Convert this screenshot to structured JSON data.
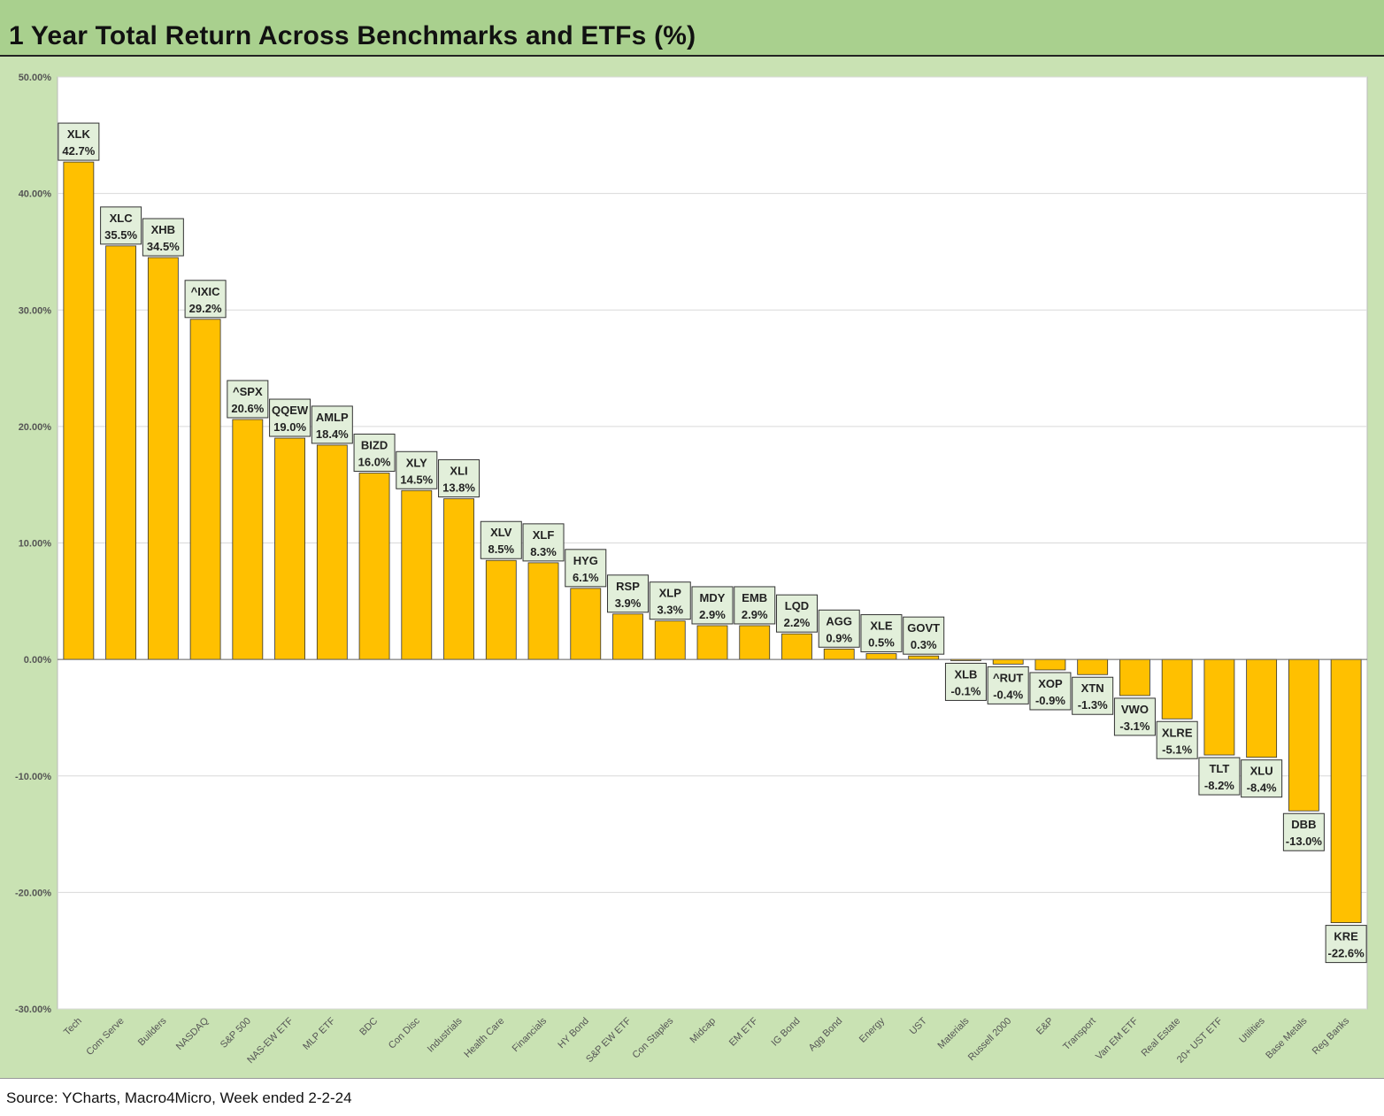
{
  "title": "1 Year Total Return Across Benchmarks and ETFs (%)",
  "source": "Source: YCharts, Macro4Micro, Week ended 2-2-24",
  "colors": {
    "bar": "#ffc000",
    "title_bar": "#a9d08e",
    "background": "#c9e2b3",
    "label_box": "#e2efda"
  },
  "chart_data": {
    "type": "bar",
    "title": "1 Year Total Return Across Benchmarks and ETFs (%)",
    "xlabel": "",
    "ylabel": "",
    "ylim": [
      -30,
      50
    ],
    "yticks": [
      "50.00%",
      "40.00%",
      "30.00%",
      "20.00%",
      "10.00%",
      "0.00%",
      "-10.00%",
      "-20.00%",
      "-30.00%"
    ],
    "ytick_values": [
      50,
      40,
      30,
      20,
      10,
      0,
      -10,
      -20,
      -30
    ],
    "grid": true,
    "legend": "none",
    "categories": [
      "Tech",
      "Com Serve",
      "Builders",
      "NASDAQ",
      "S&P 500",
      "NAS-EW ETF",
      "MLP ETF",
      "BDC",
      "Con Disc",
      "Industrials",
      "Health Care",
      "Financials",
      "HY Bond",
      "S&P EW ETF",
      "Con Staples",
      "Midcap",
      "EM ETF",
      "IG Bond",
      "Agg Bond",
      "Energy",
      "UST",
      "Materials",
      "Russell 2000",
      "E&P",
      "Transport",
      "Van EM ETF",
      "Real Estate",
      "20+ UST ETF",
      "Utilities",
      "Base Metals",
      "Reg Banks"
    ],
    "tickers": [
      "XLK",
      "XLC",
      "XHB",
      "^IXIC",
      "^SPX",
      "QQEW",
      "AMLP",
      "BIZD",
      "XLY",
      "XLI",
      "XLV",
      "XLF",
      "HYG",
      "RSP",
      "XLP",
      "MDY",
      "EMB",
      "LQD",
      "AGG",
      "XLE",
      "GOVT",
      "XLB",
      "^RUT",
      "XOP",
      "XTN",
      "VWO",
      "XLRE",
      "TLT",
      "XLU",
      "DBB",
      "KRE"
    ],
    "values": [
      42.7,
      35.5,
      34.5,
      29.2,
      20.6,
      19.0,
      18.4,
      16.0,
      14.5,
      13.8,
      8.5,
      8.3,
      6.1,
      3.9,
      3.3,
      2.9,
      2.9,
      2.2,
      0.9,
      0.5,
      0.3,
      -0.1,
      -0.4,
      -0.9,
      -1.3,
      -3.1,
      -5.1,
      -8.2,
      -8.4,
      -13.0,
      -22.6
    ],
    "value_labels": [
      "42.7%",
      "35.5%",
      "34.5%",
      "29.2%",
      "20.6%",
      "19.0%",
      "18.4%",
      "16.0%",
      "14.5%",
      "13.8%",
      "8.5%",
      "8.3%",
      "6.1%",
      "3.9%",
      "3.3%",
      "2.9%",
      "2.9%",
      "2.2%",
      "0.9%",
      "0.5%",
      "0.3%",
      "-0.1%",
      "-0.4%",
      "-0.9%",
      "-1.3%",
      "-3.1%",
      "-5.1%",
      "-8.2%",
      "-8.4%",
      "-13.0%",
      "-22.6%"
    ]
  }
}
